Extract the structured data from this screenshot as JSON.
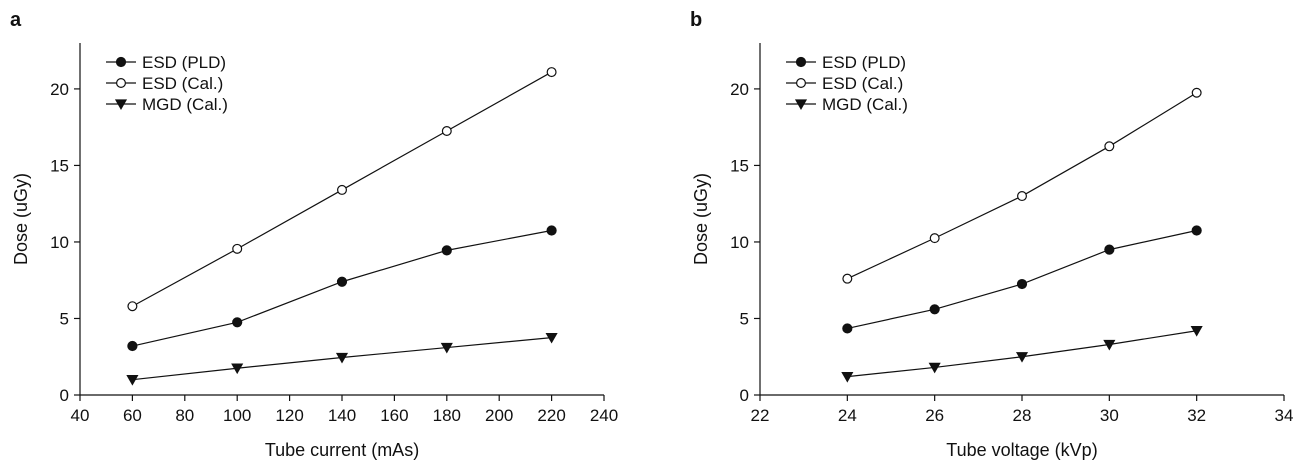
{
  "chart_data": [
    {
      "type": "line",
      "panel_label": "a",
      "xlabel": "Tube current (mAs)",
      "ylabel": "Dose (uGy)",
      "xlim": [
        40,
        240
      ],
      "ylim": [
        0,
        23
      ],
      "xticks": [
        40,
        60,
        80,
        100,
        120,
        140,
        160,
        180,
        200,
        220,
        240
      ],
      "yticks": [
        0,
        5,
        10,
        15,
        20
      ],
      "legend_position": "top-left",
      "grid": false,
      "x": [
        60,
        100,
        140,
        180,
        220
      ],
      "series": [
        {
          "name": "ESD (PLD)",
          "marker": "filled-circle",
          "values": [
            3.2,
            4.75,
            7.4,
            9.45,
            10.75
          ]
        },
        {
          "name": "ESD (Cal.)",
          "marker": "open-circle",
          "values": [
            5.8,
            9.55,
            13.4,
            17.25,
            21.1
          ]
        },
        {
          "name": "MGD (Cal.)",
          "marker": "filled-triangle-down",
          "values": [
            1.0,
            1.75,
            2.45,
            3.1,
            3.75
          ]
        }
      ]
    },
    {
      "type": "line",
      "panel_label": "b",
      "xlabel": "Tube voltage (kVp)",
      "ylabel": "Dose (uGy)",
      "xlim": [
        22,
        34
      ],
      "ylim": [
        0,
        23
      ],
      "xticks": [
        22,
        24,
        26,
        28,
        30,
        32,
        34
      ],
      "yticks": [
        0,
        5,
        10,
        15,
        20
      ],
      "legend_position": "top-left",
      "grid": false,
      "x": [
        24,
        26,
        28,
        30,
        32
      ],
      "series": [
        {
          "name": "ESD (PLD)",
          "marker": "filled-circle",
          "values": [
            4.35,
            5.6,
            7.25,
            9.5,
            10.75
          ]
        },
        {
          "name": "ESD (Cal.)",
          "marker": "open-circle",
          "values": [
            7.6,
            10.25,
            13.0,
            16.25,
            19.75
          ]
        },
        {
          "name": "MGD (Cal.)",
          "marker": "filled-triangle-down",
          "values": [
            1.2,
            1.8,
            2.5,
            3.3,
            4.2
          ]
        }
      ]
    }
  ]
}
